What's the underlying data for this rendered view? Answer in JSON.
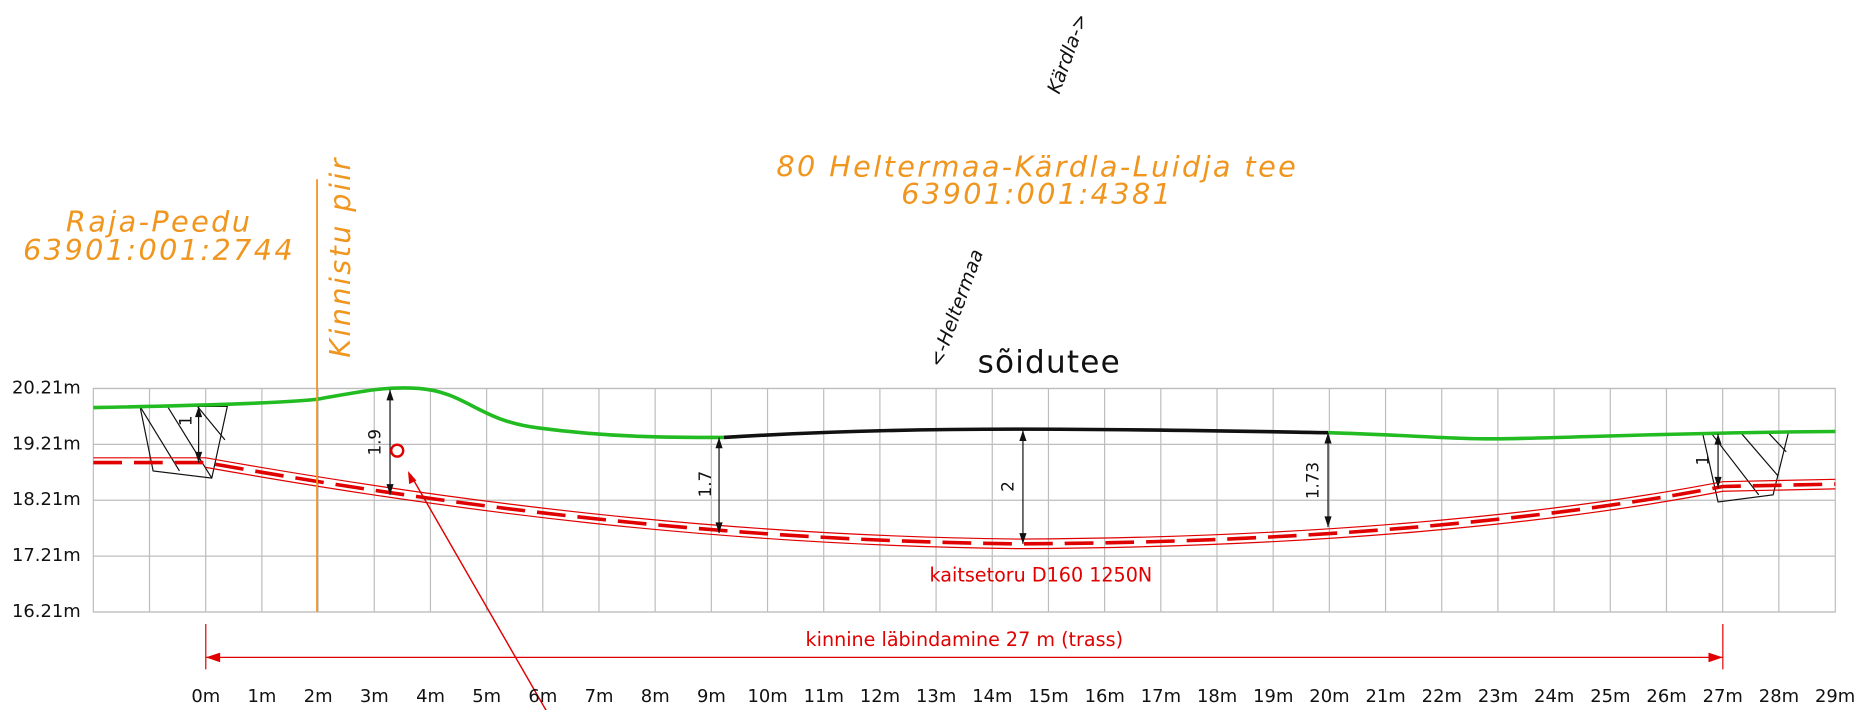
{
  "heading": {
    "direction_up": "Kärdla->",
    "direction_down": "<-Heltermaa",
    "road_surface": "sõidutee"
  },
  "parcels": [
    {
      "name": "Raja-Peedu",
      "code": "63901:001:2744"
    },
    {
      "name": "80 Heltermaa-Kärdla-Luidja tee",
      "code": "63901:001:4381"
    }
  ],
  "boundary_label": "Kinnistu piir",
  "levels": [
    "20.21m",
    "19.21m",
    "18.21m",
    "17.21m",
    "16.21m"
  ],
  "stations": [
    "0m",
    "1m",
    "2m",
    "3m",
    "4m",
    "5m",
    "6m",
    "7m",
    "8m",
    "9m",
    "10m",
    "11m",
    "12m",
    "13m",
    "14m",
    "15m",
    "16m",
    "17m",
    "18m",
    "19m",
    "20m",
    "21m",
    "22m",
    "23m",
    "24m",
    "25m",
    "26m",
    "27m",
    "28m",
    "29m"
  ],
  "depths": [
    "1",
    "1.9",
    "1.7",
    "2",
    "1.73",
    "1"
  ],
  "pipe_label": "kaitsetoru D160 1250N",
  "crossing_label": "kinnine läbindamine 27 m (trass)"
}
